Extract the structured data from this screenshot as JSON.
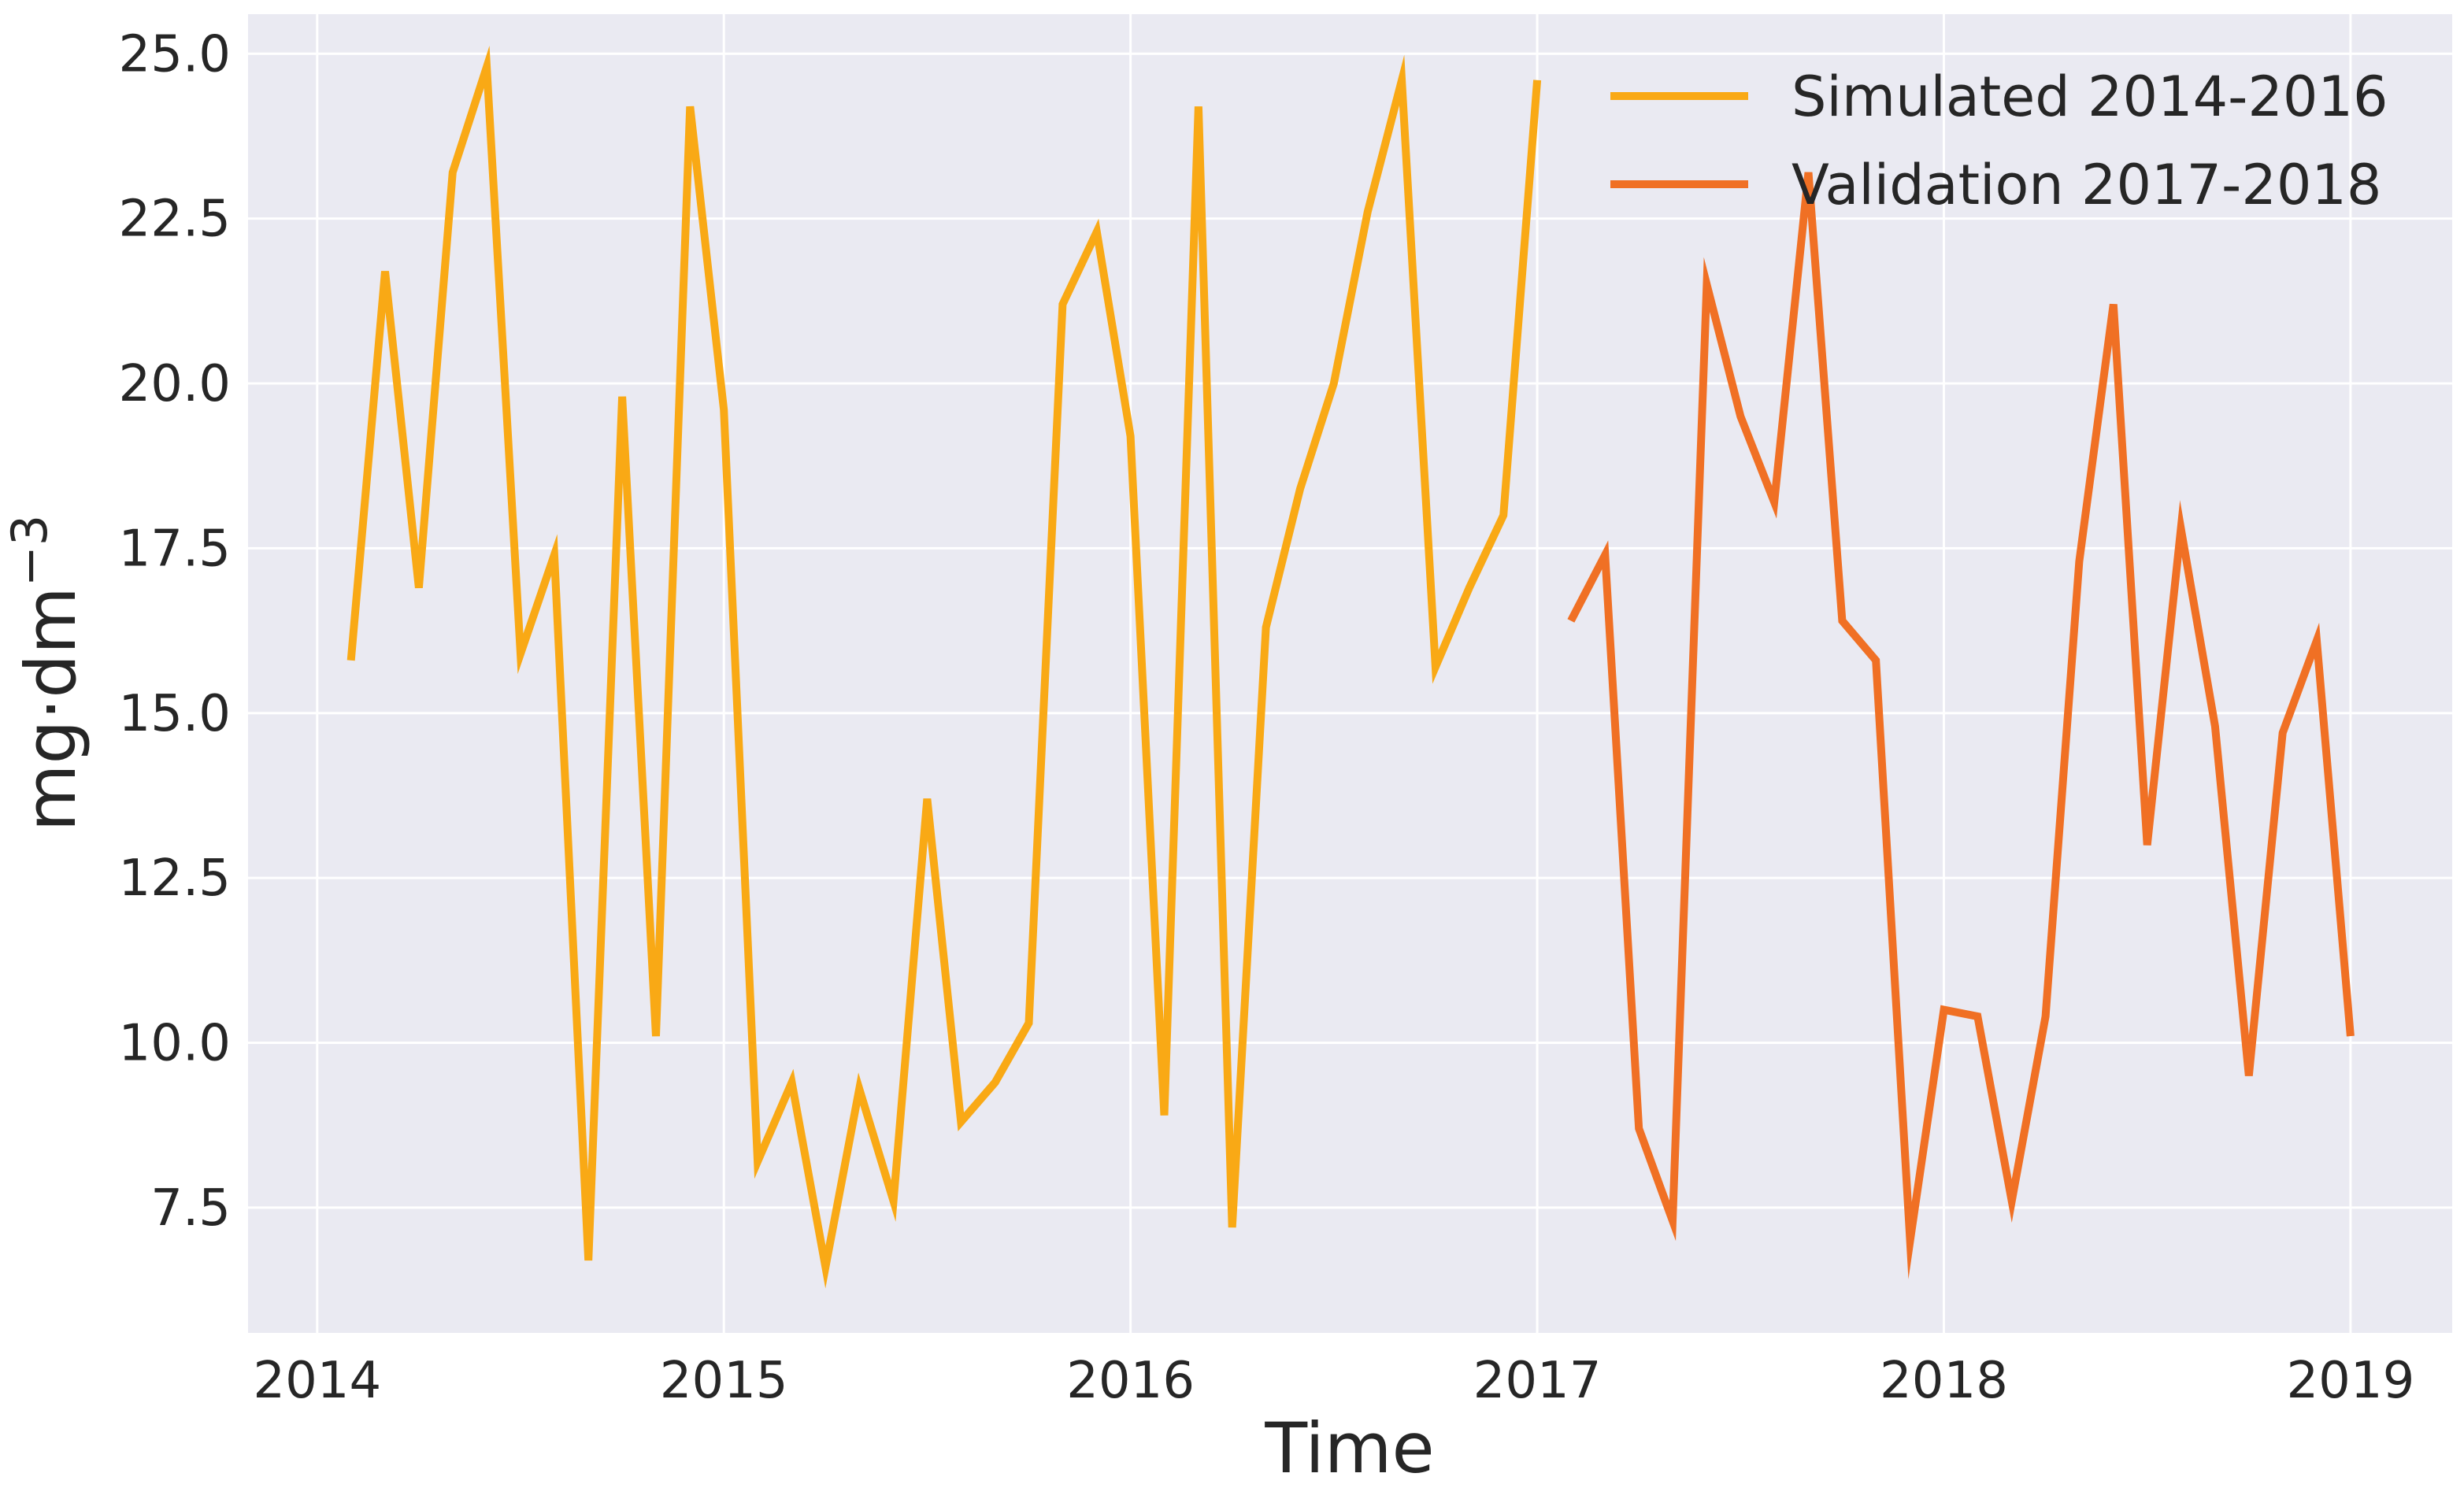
{
  "chart_data": {
    "type": "line",
    "title": "",
    "xlabel": "Time",
    "ylabel": "mg·dm",
    "ylabel_superscript": "−3",
    "xlim": [
      2013.83,
      2019.25
    ],
    "ylim": [
      5.6,
      25.6
    ],
    "x_ticks": [
      2014,
      2015,
      2016,
      2017,
      2018,
      2019
    ],
    "x_tick_labels": [
      "2014",
      "2015",
      "2016",
      "2017",
      "2018",
      "2019"
    ],
    "y_ticks": [
      7.5,
      10.0,
      12.5,
      15.0,
      17.5,
      20.0,
      22.5,
      25.0
    ],
    "y_tick_labels": [
      "7.5",
      "10.0",
      "12.5",
      "15.0",
      "17.5",
      "20.0",
      "22.5",
      "25.0"
    ],
    "grid": true,
    "legend_position": "top-right",
    "series": [
      {
        "name": "Simulated 2014-2016",
        "color": "#f9a915",
        "x": [
          2014.083,
          2014.167,
          2014.25,
          2014.333,
          2014.417,
          2014.5,
          2014.583,
          2014.667,
          2014.75,
          2014.833,
          2014.917,
          2015.0,
          2015.083,
          2015.167,
          2015.25,
          2015.333,
          2015.417,
          2015.5,
          2015.583,
          2015.667,
          2015.75,
          2015.833,
          2015.917,
          2016.0,
          2016.083,
          2016.167,
          2016.25,
          2016.333,
          2016.417,
          2016.5,
          2016.583,
          2016.667,
          2016.75,
          2016.833,
          2016.917,
          2017.0
        ],
        "values": [
          15.8,
          21.7,
          16.9,
          23.2,
          24.8,
          15.9,
          17.4,
          6.7,
          19.8,
          10.1,
          24.2,
          19.6,
          8.2,
          9.4,
          6.6,
          9.3,
          7.6,
          13.7,
          8.8,
          9.4,
          10.3,
          21.2,
          22.3,
          19.2,
          8.9,
          24.2,
          7.2,
          16.3,
          18.4,
          20.0,
          22.6,
          24.6,
          15.7,
          16.9,
          18.0,
          24.6
        ]
      },
      {
        "name": "Validation 2017-2018",
        "color": "#f07024",
        "x": [
          2017.083,
          2017.167,
          2017.25,
          2017.333,
          2017.417,
          2017.5,
          2017.583,
          2017.667,
          2017.75,
          2017.833,
          2017.917,
          2018.0,
          2018.083,
          2018.167,
          2018.25,
          2018.333,
          2018.417,
          2018.5,
          2018.583,
          2018.667,
          2018.75,
          2018.833,
          2018.917,
          2019.0
        ],
        "values": [
          16.4,
          17.4,
          8.7,
          7.3,
          21.5,
          19.5,
          18.2,
          23.2,
          16.4,
          15.8,
          7.0,
          10.5,
          10.4,
          7.6,
          10.4,
          17.3,
          21.2,
          13.0,
          17.8,
          14.8,
          9.5,
          14.7,
          16.1,
          10.1
        ]
      }
    ]
  }
}
